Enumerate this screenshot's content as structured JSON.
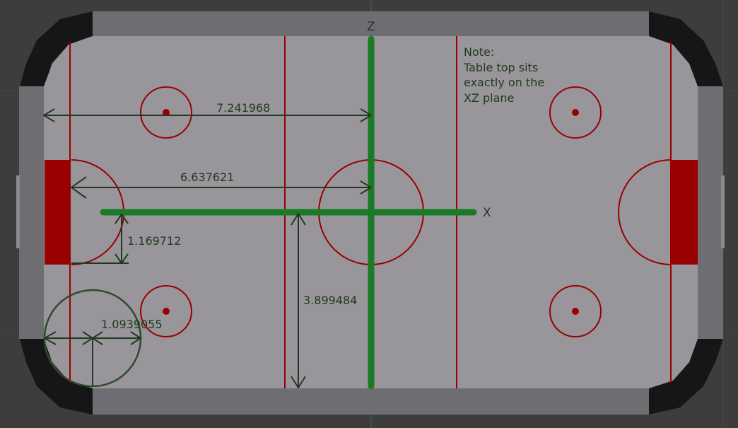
{
  "axes": {
    "x_label": "X",
    "z_label": "Z"
  },
  "note": {
    "lines": [
      "Note:",
      "Table top sits",
      "exactly on the",
      "XZ plane"
    ]
  },
  "dimensions": {
    "half_length_outer": "7.241968",
    "half_length_goal": "6.637621",
    "goal_half_width": "1.169712",
    "half_width": "3.899484",
    "puck_radius": "1.0939055"
  },
  "colors": {
    "background": "#3d3d3d",
    "table_surface": "#98969a",
    "rail": "#6e6d72",
    "corner": "#161616",
    "markings": "#990000",
    "goal_fill": "#990000",
    "axis_green": "#1b7a26",
    "dimension_lines": "#223822"
  }
}
